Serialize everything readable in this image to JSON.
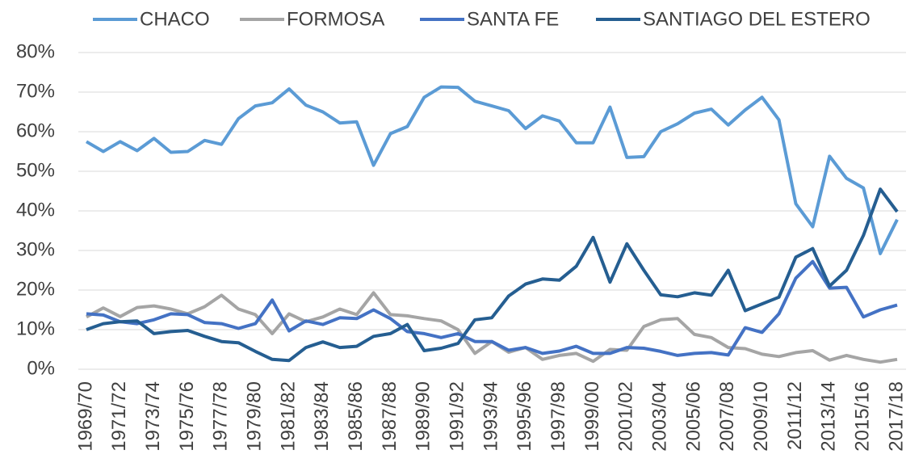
{
  "chart_data": {
    "type": "line",
    "categories": [
      "1969/70",
      null,
      "1971/72",
      null,
      "1973/74",
      null,
      "1975/76",
      null,
      "1977/78",
      null,
      "1979/80",
      null,
      "1981/82",
      null,
      "1983/84",
      null,
      "1985/86",
      null,
      "1987/88",
      null,
      "1989/90",
      null,
      "1991/92",
      null,
      "1993/94",
      null,
      "1995/96",
      null,
      "1997/98",
      null,
      "1999/00",
      null,
      "2001/02",
      null,
      "2003/04",
      null,
      "2005/06",
      null,
      "2007/08",
      null,
      "2009/10",
      null,
      "2011/12",
      null,
      "2013/14",
      null,
      "2015/16",
      null,
      "2017/18"
    ],
    "series": [
      {
        "name": "CHACO",
        "color": "#5b9bd5",
        "values": [
          57.5,
          55,
          57.5,
          55.2,
          58.3,
          54.8,
          55,
          57.8,
          56.8,
          63.3,
          66.5,
          67.3,
          70.8,
          66.7,
          65,
          62.2,
          62.5,
          51.5,
          59.5,
          61.3,
          68.7,
          71.3,
          71.2,
          67.7,
          66.5,
          65.3,
          60.8,
          64,
          62.7,
          57.2,
          57.2,
          66.2,
          53.5,
          53.7,
          60,
          62,
          64.7,
          65.7,
          61.7,
          65.5,
          68.7,
          63,
          41.8,
          36,
          53.8,
          48.2,
          45.8,
          29.2,
          37.8
        ]
      },
      {
        "name": "FORMOSA",
        "color": "#a5a5a5",
        "values": [
          13.2,
          15.5,
          13.3,
          15.6,
          16,
          15.2,
          14,
          15.8,
          18.7,
          15.2,
          13.8,
          9,
          14,
          12,
          13.2,
          15.2,
          13.8,
          19.3,
          13.8,
          13.5,
          12.8,
          12.2,
          10,
          4,
          7,
          4.3,
          5.5,
          2.5,
          3.5,
          4,
          2,
          5,
          4.8,
          10.8,
          12.5,
          12.8,
          8.8,
          8,
          5.5,
          5.2,
          3.8,
          3.2,
          4.2,
          4.7,
          2.3,
          3.5,
          2.5,
          1.8,
          2.5
        ]
      },
      {
        "name": "SANTA FE",
        "color": "#4472c4",
        "values": [
          14,
          13.7,
          12,
          11.5,
          12.5,
          14,
          13.8,
          11.8,
          11.5,
          10.3,
          11.5,
          17.5,
          9.7,
          12.2,
          11.3,
          13,
          12.8,
          15,
          12.8,
          9.5,
          9,
          8,
          9,
          7,
          7,
          4.8,
          5.5,
          4,
          4.6,
          5.8,
          4,
          4,
          5.5,
          5.3,
          4.5,
          3.5,
          4,
          4.2,
          3.6,
          10.5,
          9.3,
          14,
          23,
          27.2,
          20.5,
          20.7,
          13.2,
          15,
          16.2
        ]
      },
      {
        "name": "SANTIAGO DEL ESTERO",
        "color": "#255e91",
        "values": [
          10,
          11.5,
          12,
          12.2,
          9,
          9.5,
          9.8,
          8.3,
          7,
          6.7,
          4.5,
          2.5,
          2.2,
          5.5,
          6.9,
          5.5,
          5.8,
          8.3,
          9,
          11.3,
          4.7,
          5.3,
          6.5,
          12.5,
          13,
          18.5,
          21.5,
          22.8,
          22.5,
          26,
          33.3,
          22,
          31.7,
          25,
          18.8,
          18.3,
          19.3,
          18.7,
          25,
          14.8,
          16.5,
          18.2,
          28.3,
          30.5,
          21,
          25,
          33.8,
          45.5,
          39.8
        ]
      }
    ],
    "ylim": [
      0,
      80
    ],
    "yticks": [
      {
        "value": 0,
        "label": "0%"
      },
      {
        "value": 10,
        "label": "10%"
      },
      {
        "value": 20,
        "label": "20%"
      },
      {
        "value": 30,
        "label": "30%"
      },
      {
        "value": 40,
        "label": "40%"
      },
      {
        "value": 50,
        "label": "50%"
      },
      {
        "value": 60,
        "label": "60%"
      },
      {
        "value": 70,
        "label": "70%"
      },
      {
        "value": 80,
        "label": "80%"
      }
    ],
    "grid": true,
    "legend": "top"
  }
}
